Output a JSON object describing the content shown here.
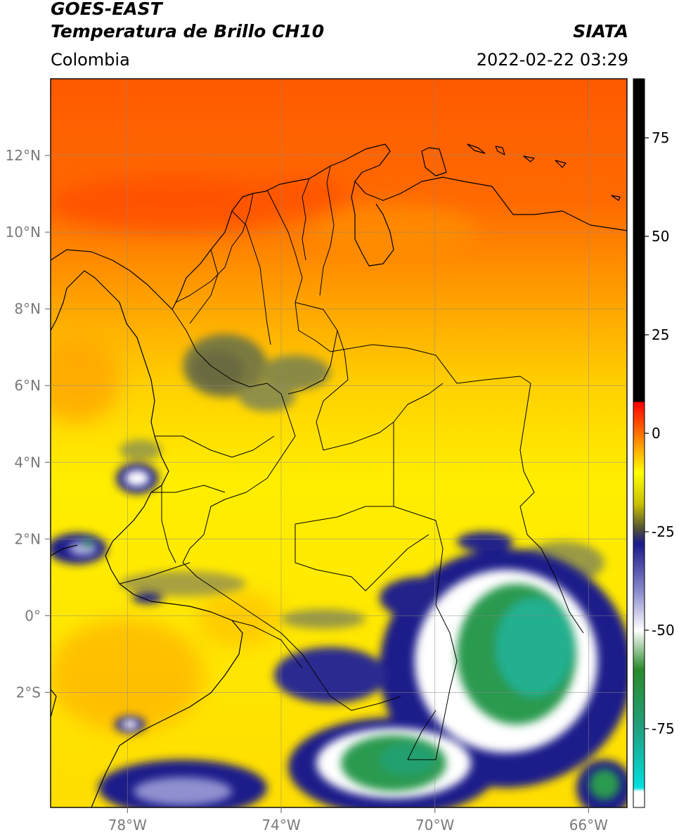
{
  "header": {
    "line1": "GOES-EAST",
    "line2": "Temperatura de Brillo CH10",
    "brand": "SIATA",
    "region": "Colombia",
    "timestamp": "2022-02-22 03:29"
  },
  "map": {
    "lon_range": [
      -80,
      -65
    ],
    "lat_range": [
      -5,
      14
    ],
    "lon_ticks": [
      {
        "value": -78,
        "label": "78°W"
      },
      {
        "value": -74,
        "label": "74°W"
      },
      {
        "value": -70,
        "label": "70°W"
      },
      {
        "value": -66,
        "label": "66°W"
      }
    ],
    "lat_ticks": [
      {
        "value": 12,
        "label": "12°N"
      },
      {
        "value": 10,
        "label": "10°N"
      },
      {
        "value": 8,
        "label": "8°N"
      },
      {
        "value": 6,
        "label": "6°N"
      },
      {
        "value": 4,
        "label": "4°N"
      },
      {
        "value": 2,
        "label": "2°N"
      },
      {
        "value": 0,
        "label": "0°"
      },
      {
        "value": -2,
        "label": "2°S"
      }
    ]
  },
  "colorbar": {
    "range": [
      -95,
      90
    ],
    "ticks": [
      {
        "value": 75,
        "label": "75"
      },
      {
        "value": 50,
        "label": "50"
      },
      {
        "value": 25,
        "label": "25"
      },
      {
        "value": 0,
        "label": "0"
      },
      {
        "value": -25,
        "label": "-25"
      },
      {
        "value": -50,
        "label": "-50"
      },
      {
        "value": -75,
        "label": "-75"
      }
    ],
    "stops": [
      {
        "value": 90,
        "color": "#000000"
      },
      {
        "value": 8,
        "color": "#000000"
      },
      {
        "value": 7.9,
        "color": "#ff0000"
      },
      {
        "value": -10,
        "color": "#ffff00"
      },
      {
        "value": -18,
        "color": "#c8c000"
      },
      {
        "value": -24,
        "color": "#555533"
      },
      {
        "value": -28,
        "color": "#1a1a8a"
      },
      {
        "value": -40,
        "color": "#8888cc"
      },
      {
        "value": -50,
        "color": "#ffffff"
      },
      {
        "value": -60,
        "color": "#2a8a2a"
      },
      {
        "value": -75,
        "color": "#20a080"
      },
      {
        "value": -90,
        "color": "#00e0e0"
      },
      {
        "value": -91,
        "color": "#ffffff"
      },
      {
        "value": -95,
        "color": "#ffffff"
      }
    ]
  }
}
